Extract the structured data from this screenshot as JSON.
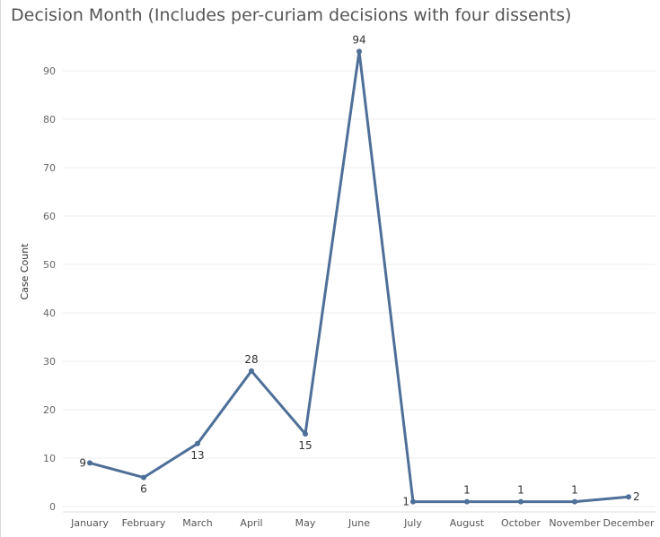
{
  "chart_data": {
    "type": "line",
    "title": "Decision Month (Includes per-curiam decisions with four dissents)",
    "ylabel": "Case Count",
    "xlabel": "",
    "categories": [
      "January",
      "February",
      "March",
      "April",
      "May",
      "June",
      "July",
      "August",
      "October",
      "November",
      "December"
    ],
    "values": [
      9,
      6,
      13,
      28,
      15,
      94,
      1,
      1,
      1,
      1,
      2
    ],
    "ylim": [
      0,
      100
    ],
    "yticks": [
      0,
      10,
      20,
      30,
      40,
      50,
      60,
      70,
      80,
      90
    ],
    "grid": true,
    "line_color": "#4e6f98",
    "grid_color": "#eeeeee"
  }
}
